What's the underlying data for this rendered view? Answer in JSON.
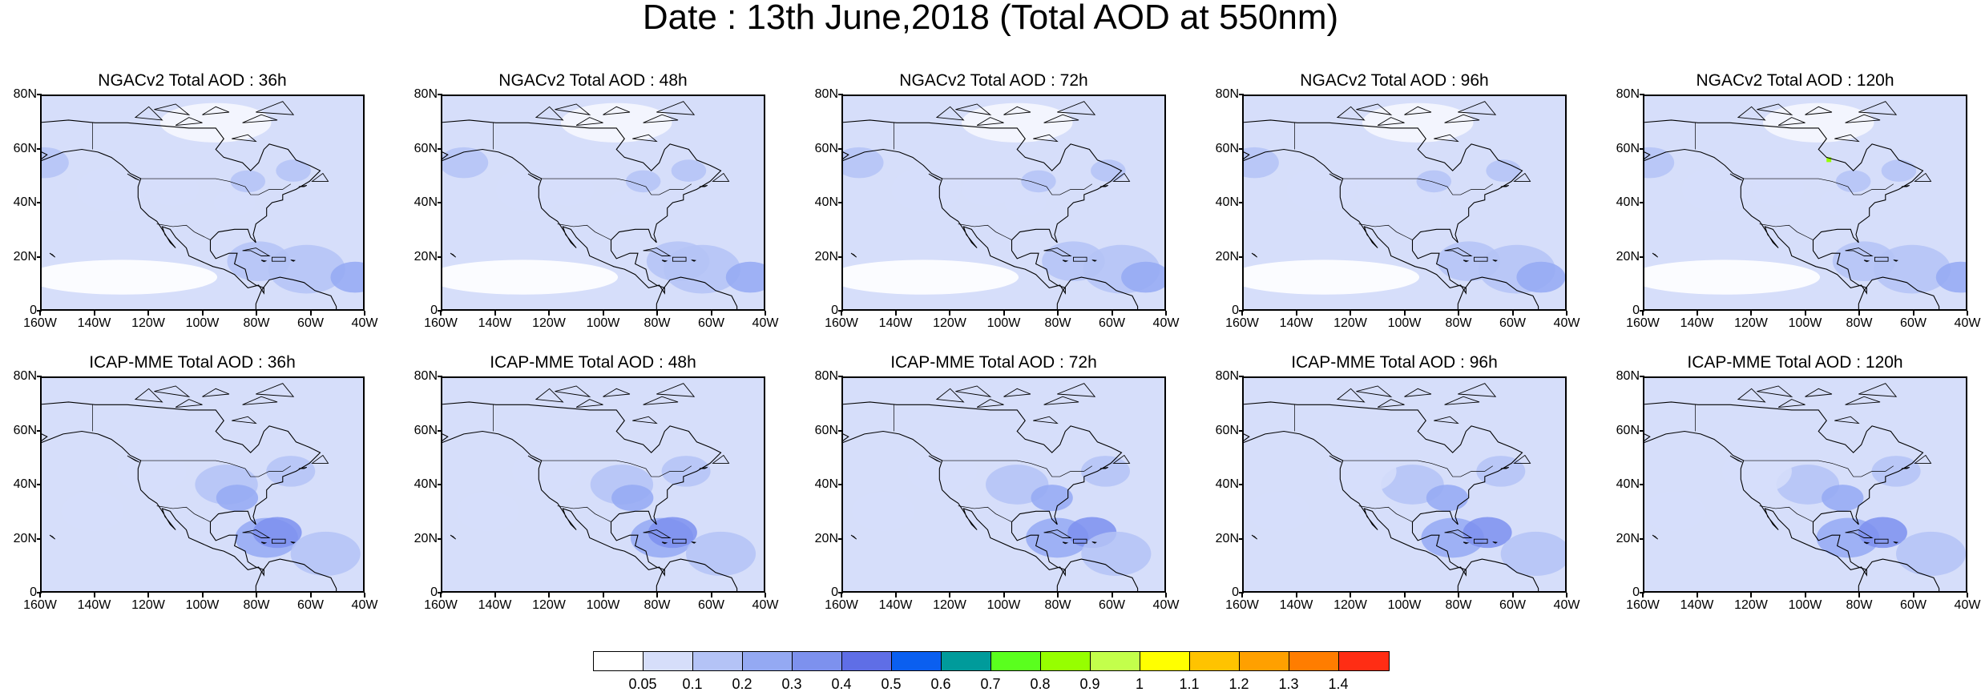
{
  "title": "Date : 13th June,2018 (Total AOD at 550nm)",
  "lat_labels": [
    "80N",
    "60N",
    "40N",
    "20N",
    "0"
  ],
  "lon_labels": [
    "160W",
    "140W",
    "120W",
    "100W",
    "80W",
    "60W",
    "40W"
  ],
  "panels": [
    {
      "title": "NGACv2 Total AOD : 36h"
    },
    {
      "title": "NGACv2 Total AOD : 48h"
    },
    {
      "title": "NGACv2 Total AOD : 72h"
    },
    {
      "title": "NGACv2 Total AOD : 96h"
    },
    {
      "title": "NGACv2 Total AOD : 120h"
    },
    {
      "title": "ICAP-MME Total AOD : 36h"
    },
    {
      "title": "ICAP-MME Total AOD : 48h"
    },
    {
      "title": "ICAP-MME Total AOD : 72h"
    },
    {
      "title": "ICAP-MME Total AOD : 96h"
    },
    {
      "title": "ICAP-MME Total AOD : 120h"
    }
  ],
  "colorbar": {
    "colors": [
      "#ffffff",
      "#d6defa",
      "#b4c3f6",
      "#94a9f3",
      "#7d91ee",
      "#5f6ee6",
      "#0a5ff0",
      "#009b9b",
      "#5aff1e",
      "#96ff00",
      "#c3ff4b",
      "#ffff00",
      "#ffc300",
      "#ffa000",
      "#ff7d00",
      "#ff2d14"
    ],
    "labels": [
      "0.05",
      "0.1",
      "0.2",
      "0.3",
      "0.4",
      "0.5",
      "0.6",
      "0.7",
      "0.8",
      "0.9",
      "1",
      "1.1",
      "1.2",
      "1.3",
      "1.4"
    ]
  }
}
